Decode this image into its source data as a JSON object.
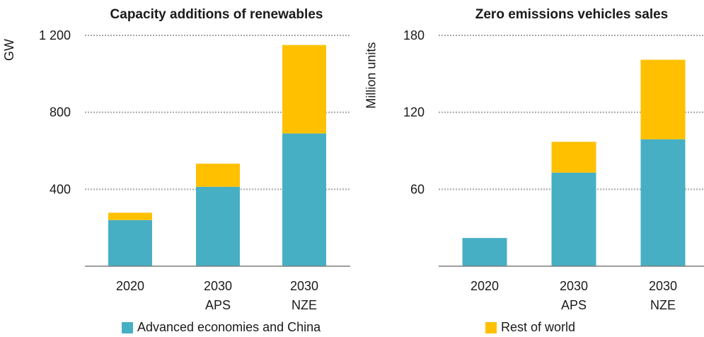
{
  "colors": {
    "advanced": "#47afc4",
    "rest": "#ffc000",
    "grid": "#a6a6a6",
    "axis": "#7f7f7f"
  },
  "legend": [
    {
      "label": "Advanced economies and China",
      "color": "#47afc4"
    },
    {
      "label": "Rest of world",
      "color": "#ffc000"
    }
  ],
  "chart_data": [
    {
      "type": "bar",
      "stacked": true,
      "title": "Capacity additions of renewables",
      "ylabel": "GW",
      "ylim": [
        0,
        1200
      ],
      "yticks": [
        400,
        800,
        1200
      ],
      "ytick_labels": [
        "400",
        "800",
        "1 200"
      ],
      "grid": true,
      "categories": [
        {
          "line1": "2020",
          "line2": ""
        },
        {
          "line1": "2030",
          "line2": "APS"
        },
        {
          "line1": "2030",
          "line2": "NZE"
        }
      ],
      "series": [
        {
          "key": "advanced",
          "values": [
            240,
            413,
            690
          ]
        },
        {
          "key": "rest",
          "values": [
            38,
            120,
            460
          ]
        }
      ]
    },
    {
      "type": "bar",
      "stacked": true,
      "title": "Zero emissions vehicles sales",
      "ylabel": "Million units",
      "ylim": [
        0,
        180
      ],
      "yticks": [
        60,
        120,
        180
      ],
      "ytick_labels": [
        "60",
        "120",
        "180"
      ],
      "grid": true,
      "categories": [
        {
          "line1": "2020",
          "line2": ""
        },
        {
          "line1": "2030",
          "line2": "APS"
        },
        {
          "line1": "2030",
          "line2": "NZE"
        }
      ],
      "series": [
        {
          "key": "advanced",
          "values": [
            22,
            73,
            99
          ]
        },
        {
          "key": "rest",
          "values": [
            0,
            24,
            62
          ]
        }
      ]
    }
  ]
}
